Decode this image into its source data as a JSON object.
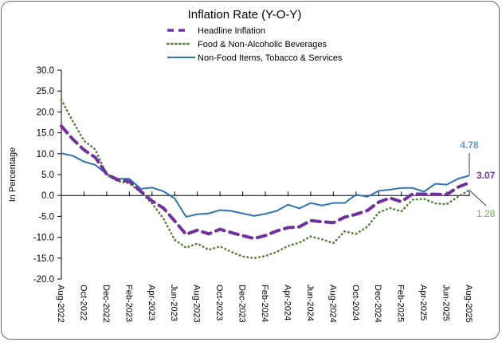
{
  "chart_data": {
    "type": "line",
    "title": "Inflation Rate (Y-O-Y)",
    "xlabel": "",
    "ylabel": "In Percentage",
    "ylim": [
      -20,
      30
    ],
    "y_ticks": [
      "30.0",
      "25.0",
      "20.0",
      "15.0",
      "10.0",
      "5.0",
      "0.0",
      "-5.0",
      "-10.0",
      "-15.0",
      "-20.0"
    ],
    "y_tick_values": [
      30,
      25,
      20,
      15,
      10,
      5,
      0,
      -5,
      -10,
      -15,
      -20
    ],
    "grid": false,
    "legend_position": "top-center",
    "x": [
      "Aug-2022",
      "Sep-2022",
      "Oct-2022",
      "Nov-2022",
      "Dec-2022",
      "Jan-2023",
      "Feb-2023",
      "Mar-2023",
      "Apr-2023",
      "May-2023",
      "Jun-2023",
      "Jul-2023",
      "Aug-2023",
      "Sep-2023",
      "Oct-2023",
      "Nov-2023",
      "Dec-2023",
      "Jan-2024",
      "Feb-2024",
      "Mar-2024",
      "Apr-2024",
      "May-2024",
      "Jun-2024",
      "Jul-2024",
      "Aug-2024",
      "Sep-2024",
      "Oct-2024",
      "Nov-2024",
      "Dec-2024",
      "Jan-2025",
      "Feb-2025",
      "Mar-2025",
      "Apr-2025",
      "May-2025",
      "Jun-2025",
      "Jul-2025",
      "Aug-2025"
    ],
    "x_tick_labels": [
      "Aug-2022",
      "Oct-2022",
      "Dec-2022",
      "Feb-2023",
      "Apr-2023",
      "Jun-2023",
      "Aug-2023",
      "Oct-2023",
      "Dec-2023",
      "Feb-2024",
      "Apr-2024",
      "Jun-2024",
      "Aug-2024",
      "Oct-2024",
      "Dec-2024",
      "Feb-2025",
      "Apr-2025",
      "Jun-2025",
      "Aug-2025"
    ],
    "series": [
      {
        "name": "Headline Inflation",
        "color": "#7030a0",
        "style": "dashed",
        "values": [
          16.6,
          13.5,
          10.9,
          9.1,
          5.1,
          3.7,
          3.4,
          1.0,
          -1.3,
          -3.0,
          -6.1,
          -9.3,
          -8.3,
          -9.2,
          -8.1,
          -8.9,
          -9.6,
          -10.3,
          -9.6,
          -8.5,
          -7.7,
          -7.5,
          -6.0,
          -6.3,
          -6.5,
          -5.2,
          -4.5,
          -3.6,
          -1.6,
          -0.6,
          -1.5,
          0.4,
          0.3,
          0.3,
          0.2,
          2.0,
          3.07
        ],
        "end_label": "3.07"
      },
      {
        "name": "Food & Non-Alcoholic Beverages",
        "color": "#548235",
        "label_color": "#70ad47",
        "style": "dotted",
        "values": [
          22.9,
          17.8,
          13.1,
          11.0,
          4.9,
          3.4,
          2.9,
          0.8,
          -1.9,
          -5.5,
          -10.6,
          -12.5,
          -11.5,
          -13.0,
          -12.2,
          -13.5,
          -14.6,
          -15.0,
          -14.5,
          -13.5,
          -12.1,
          -11.3,
          -9.8,
          -10.5,
          -11.4,
          -8.6,
          -9.2,
          -7.5,
          -4.1,
          -3.0,
          -3.8,
          -1.0,
          -0.8,
          -1.9,
          -2.1,
          -0.3,
          1.28
        ],
        "end_label": "1.28"
      },
      {
        "name": "Non-Food Items, Tobacco & Services",
        "color": "#2e75b6",
        "label_color": "#5b9bd5",
        "style": "solid",
        "values": [
          10.1,
          9.5,
          8.1,
          7.3,
          5.1,
          4.0,
          4.0,
          1.6,
          1.9,
          1.0,
          -0.7,
          -5.1,
          -4.5,
          -4.3,
          -3.5,
          -3.7,
          -4.3,
          -4.9,
          -4.4,
          -3.7,
          -2.2,
          -3.1,
          -1.8,
          -2.4,
          -1.8,
          -1.8,
          0.2,
          -0.3,
          1.1,
          1.4,
          1.8,
          1.8,
          0.9,
          2.8,
          2.6,
          4.0,
          4.78
        ],
        "end_label": "4.78"
      }
    ]
  }
}
